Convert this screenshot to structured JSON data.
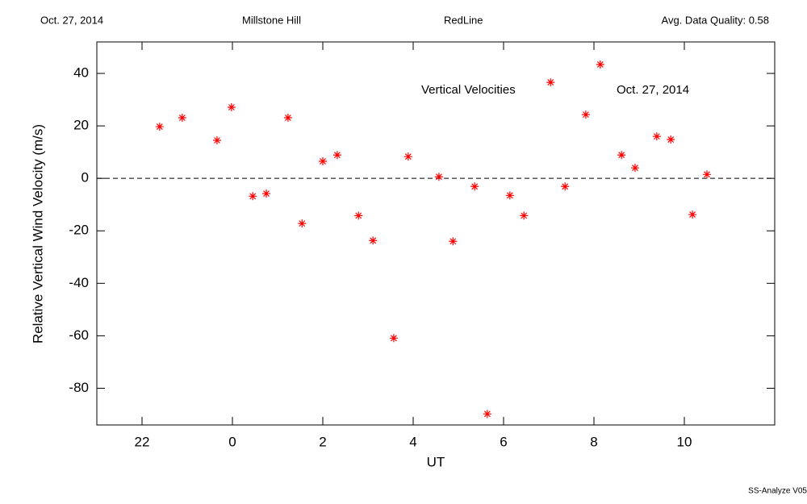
{
  "chart_data": {
    "type": "scatter",
    "header": [
      "Oct. 27, 2014",
      "Millstone Hill",
      "RedLine",
      "Avg. Data Quality: 0.58"
    ],
    "annotations": [
      "Vertical Velocities",
      "Oct. 27, 2014"
    ],
    "footer": "SS-Analyze V05",
    "x_label": "UT",
    "y_label": "Relative Vertical Wind Velocity (m/s)",
    "color": "#ff0000",
    "reference_line": 0,
    "x": [
      22.39,
      22.89,
      23.66,
      23.98,
      24.45,
      24.75,
      25.23,
      25.54,
      26.0,
      26.32,
      26.79,
      27.11,
      27.57,
      27.89,
      28.57,
      28.88,
      29.36,
      29.64,
      30.14,
      30.45,
      31.04,
      31.36,
      31.82,
      32.14,
      32.61,
      32.91,
      33.39,
      33.7,
      34.18,
      34.5
    ],
    "values": [
      19.7,
      23.1,
      14.5,
      27.1,
      -6.8,
      -5.8,
      23.1,
      -17.2,
      6.5,
      8.9,
      -14.2,
      -23.7,
      -60.9,
      8.3,
      0.6,
      -24.0,
      -3.1,
      -89.8,
      -6.5,
      -14.2,
      36.6,
      -3.1,
      24.3,
      43.4,
      8.9,
      4.0,
      16.0,
      14.8,
      -13.8,
      1.5
    ],
    "xlim": [
      21,
      36
    ],
    "xticks": [
      22,
      {
        "value": 24,
        "label": "0"
      },
      {
        "value": 26,
        "label": "2"
      },
      {
        "value": 28,
        "label": "4"
      },
      {
        "value": 30,
        "label": "6"
      },
      {
        "value": 32,
        "label": "8"
      },
      {
        "value": 34,
        "label": "10"
      }
    ],
    "ylim": [
      -94,
      52
    ],
    "yticks": [
      -80,
      -60,
      -40,
      -20,
      0,
      20,
      40
    ]
  }
}
